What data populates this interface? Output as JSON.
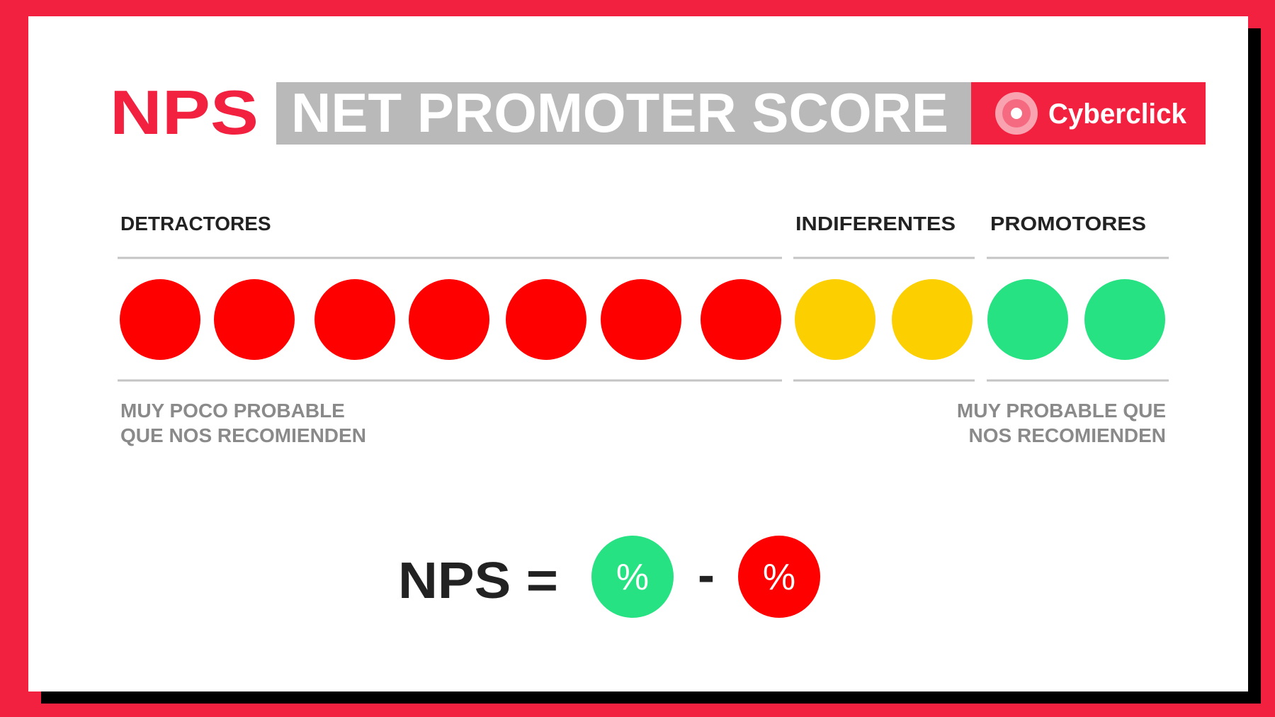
{
  "header": {
    "acronym": "NPS",
    "title": "NET PROMOTER SCORE",
    "brand": "Cyberclick"
  },
  "groups": [
    "DETRACTORES",
    "INDIFERENTES",
    "PROMOTORES"
  ],
  "captions": {
    "low": [
      "MUY POCO PROBABLE",
      "QUE NOS RECOMIENDEN"
    ],
    "high": [
      "MUY PROBABLE QUE",
      "NOS RECOMIENDEN"
    ]
  },
  "formula": {
    "left": "NPS =",
    "promoters": "%",
    "minus": "-",
    "detractors": "%"
  }
}
